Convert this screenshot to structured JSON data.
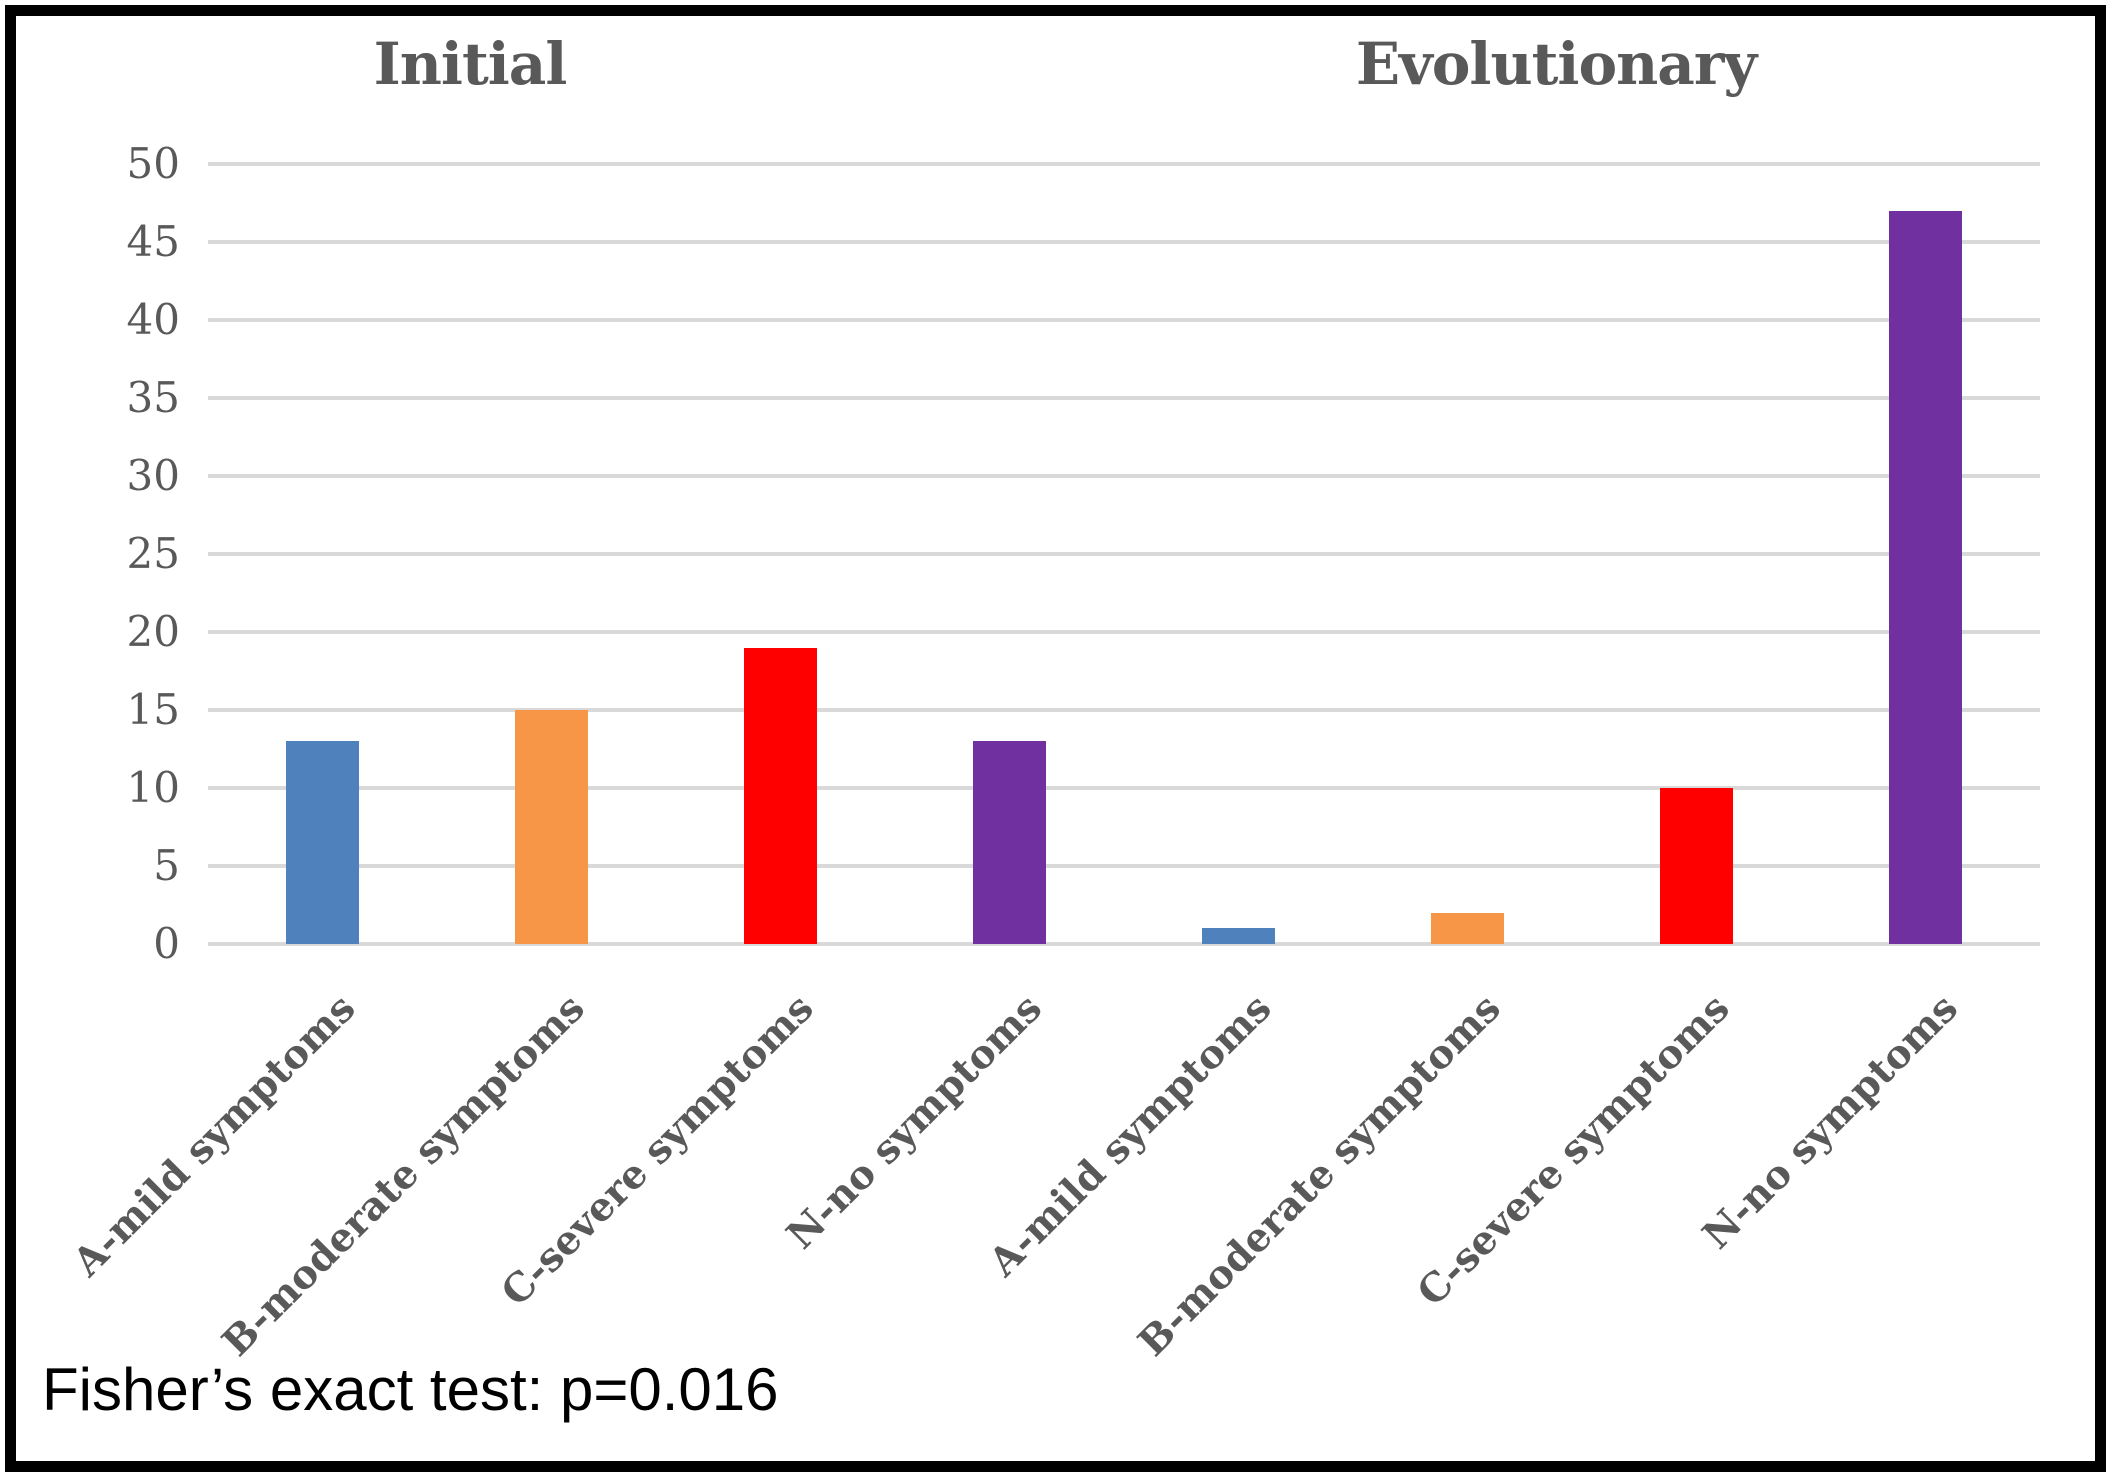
{
  "figure": {
    "background_color": "#ffffff",
    "border_color": "#000000",
    "text_color": "#595959",
    "gridline_color": "#d9d9d9"
  },
  "annotation": {
    "text": "Fisher’s exact test: p=0.016"
  },
  "chart_data": {
    "type": "bar",
    "title": "",
    "group_titles": [
      "Initial",
      "Evolutionary"
    ],
    "categories": [
      "A-mild symptoms",
      "B-moderate symptoms",
      "C-severe symptoms",
      "N-no symptoms"
    ],
    "series": [
      {
        "name": "Initial",
        "values": [
          13,
          15,
          19,
          13
        ]
      },
      {
        "name": "Evolutionary",
        "values": [
          1,
          2,
          10,
          47
        ]
      }
    ],
    "bar_colors_by_category": [
      "#4F81BD",
      "#F79646",
      "#FF0000",
      "#7030A0"
    ],
    "ylim": [
      0,
      50
    ],
    "ytick_step": 5,
    "yticks": [
      0,
      5,
      10,
      15,
      20,
      25,
      30,
      35,
      40,
      45,
      50
    ],
    "grid": true,
    "legend": "none",
    "xlabel": "",
    "ylabel": "",
    "annotation": "Fisher’s exact test: p=0.016"
  }
}
